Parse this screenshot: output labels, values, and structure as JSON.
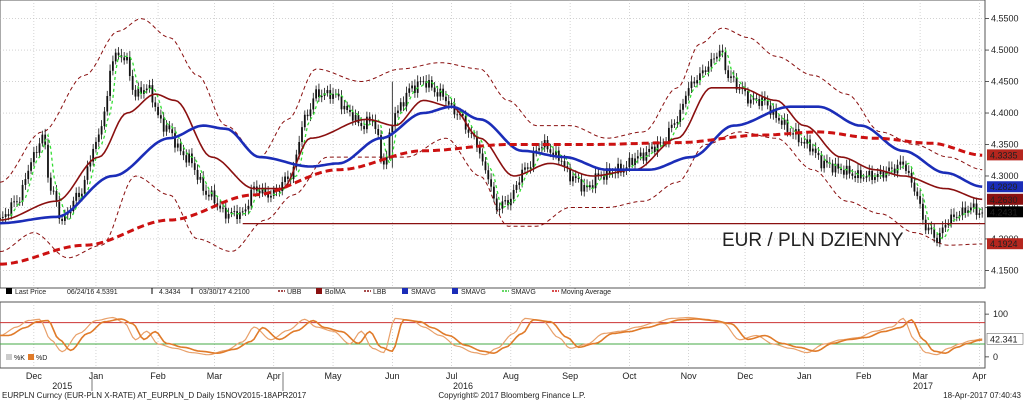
{
  "chart_data": {
    "type": "line",
    "title": "EUR / PLN DZIENNY",
    "ylim": [
      4.13,
      4.57
    ],
    "yticks": [
      "4.5500",
      "4.5000",
      "4.4500",
      "4.4000",
      "4.3500",
      "4.3000",
      "4.2500",
      "4.2000",
      "4.1500"
    ],
    "months": [
      {
        "label": "Dec",
        "i": 12
      },
      {
        "label": "Jan",
        "i": 34
      },
      {
        "label": "Feb",
        "i": 56
      },
      {
        "label": "Mar",
        "i": 76
      },
      {
        "label": "Apr",
        "i": 97
      },
      {
        "label": "May",
        "i": 118
      },
      {
        "label": "Jun",
        "i": 139
      },
      {
        "label": "Jul",
        "i": 160
      },
      {
        "label": "Aug",
        "i": 181
      },
      {
        "label": "Sep",
        "i": 202
      },
      {
        "label": "Oct",
        "i": 223
      },
      {
        "label": "Nov",
        "i": 244
      },
      {
        "label": "Dec",
        "i": 264
      },
      {
        "label": "Jan",
        "i": 285
      },
      {
        "label": "Feb",
        "i": 306
      },
      {
        "label": "Mar",
        "i": 326
      },
      {
        "label": "Apr",
        "i": 347
      }
    ],
    "years": [
      {
        "label": "2015",
        "i": 10
      },
      {
        "label": "2016",
        "i": 152
      },
      {
        "label": "2017",
        "i": 315
      }
    ],
    "price_anchors": [
      [
        0,
        4.23
      ],
      [
        6,
        4.26
      ],
      [
        12,
        4.33
      ],
      [
        15,
        4.365
      ],
      [
        18,
        4.28
      ],
      [
        22,
        4.23
      ],
      [
        28,
        4.27
      ],
      [
        34,
        4.35
      ],
      [
        37,
        4.4
      ],
      [
        40,
        4.49
      ],
      [
        44,
        4.49
      ],
      [
        48,
        4.43
      ],
      [
        52,
        4.44
      ],
      [
        58,
        4.38
      ],
      [
        66,
        4.33
      ],
      [
        74,
        4.27
      ],
      [
        80,
        4.24
      ],
      [
        86,
        4.24
      ],
      [
        90,
        4.28
      ],
      [
        96,
        4.27
      ],
      [
        103,
        4.3
      ],
      [
        108,
        4.39
      ],
      [
        112,
        4.43
      ],
      [
        118,
        4.43
      ],
      [
        124,
        4.4
      ],
      [
        128,
        4.38
      ],
      [
        132,
        4.39
      ],
      [
        136,
        4.32
      ],
      [
        140,
        4.4
      ],
      [
        146,
        4.44
      ],
      [
        150,
        4.45
      ],
      [
        156,
        4.43
      ],
      [
        162,
        4.4
      ],
      [
        168,
        4.36
      ],
      [
        172,
        4.31
      ],
      [
        176,
        4.25
      ],
      [
        180,
        4.26
      ],
      [
        186,
        4.31
      ],
      [
        192,
        4.35
      ],
      [
        198,
        4.33
      ],
      [
        202,
        4.3
      ],
      [
        208,
        4.28
      ],
      [
        212,
        4.3
      ],
      [
        220,
        4.31
      ],
      [
        226,
        4.33
      ],
      [
        234,
        4.35
      ],
      [
        240,
        4.39
      ],
      [
        244,
        4.44
      ],
      [
        248,
        4.46
      ],
      [
        252,
        4.48
      ],
      [
        255,
        4.5
      ],
      [
        258,
        4.46
      ],
      [
        262,
        4.44
      ],
      [
        266,
        4.42
      ],
      [
        270,
        4.42
      ],
      [
        276,
        4.39
      ],
      [
        280,
        4.37
      ],
      [
        286,
        4.35
      ],
      [
        292,
        4.32
      ],
      [
        298,
        4.31
      ],
      [
        304,
        4.3
      ],
      [
        310,
        4.3
      ],
      [
        316,
        4.31
      ],
      [
        320,
        4.32
      ],
      [
        324,
        4.28
      ],
      [
        328,
        4.22
      ],
      [
        332,
        4.2
      ],
      [
        336,
        4.23
      ],
      [
        340,
        4.24
      ],
      [
        344,
        4.25
      ],
      [
        348,
        4.24
      ]
    ],
    "moving_average_200": [
      [
        0,
        4.16
      ],
      [
        30,
        4.19
      ],
      [
        60,
        4.23
      ],
      [
        90,
        4.27
      ],
      [
        120,
        4.31
      ],
      [
        150,
        4.34
      ],
      [
        180,
        4.35
      ],
      [
        210,
        4.35
      ],
      [
        240,
        4.353
      ],
      [
        270,
        4.365
      ],
      [
        290,
        4.37
      ],
      [
        310,
        4.36
      ],
      [
        330,
        4.352
      ],
      [
        348,
        4.333
      ]
    ],
    "sma_blue": [
      [
        0,
        4.225
      ],
      [
        20,
        4.235
      ],
      [
        40,
        4.3
      ],
      [
        60,
        4.36
      ],
      [
        72,
        4.38
      ],
      [
        80,
        4.375
      ],
      [
        92,
        4.33
      ],
      [
        110,
        4.315
      ],
      [
        120,
        4.32
      ],
      [
        135,
        4.36
      ],
      [
        150,
        4.4
      ],
      [
        160,
        4.41
      ],
      [
        170,
        4.39
      ],
      [
        185,
        4.34
      ],
      [
        200,
        4.33
      ],
      [
        215,
        4.31
      ],
      [
        230,
        4.31
      ],
      [
        245,
        4.33
      ],
      [
        260,
        4.38
      ],
      [
        280,
        4.41
      ],
      [
        290,
        4.41
      ],
      [
        305,
        4.38
      ],
      [
        320,
        4.34
      ],
      [
        335,
        4.305
      ],
      [
        348,
        4.283
      ]
    ],
    "bollinger_mid": [
      [
        0,
        4.23
      ],
      [
        20,
        4.26
      ],
      [
        35,
        4.33
      ],
      [
        45,
        4.4
      ],
      [
        55,
        4.43
      ],
      [
        62,
        4.42
      ],
      [
        75,
        4.33
      ],
      [
        90,
        4.28
      ],
      [
        100,
        4.28
      ],
      [
        110,
        4.36
      ],
      [
        130,
        4.39
      ],
      [
        140,
        4.38
      ],
      [
        150,
        4.42
      ],
      [
        160,
        4.41
      ],
      [
        170,
        4.36
      ],
      [
        182,
        4.3
      ],
      [
        195,
        4.32
      ],
      [
        210,
        4.3
      ],
      [
        225,
        4.31
      ],
      [
        240,
        4.36
      ],
      [
        252,
        4.44
      ],
      [
        262,
        4.44
      ],
      [
        275,
        4.42
      ],
      [
        285,
        4.38
      ],
      [
        298,
        4.33
      ],
      [
        310,
        4.31
      ],
      [
        320,
        4.3
      ],
      [
        335,
        4.28
      ],
      [
        348,
        4.263
      ]
    ],
    "upper_band": [
      [
        0,
        4.29
      ],
      [
        15,
        4.37
      ],
      [
        30,
        4.46
      ],
      [
        42,
        4.53
      ],
      [
        50,
        4.55
      ],
      [
        60,
        4.52
      ],
      [
        70,
        4.46
      ],
      [
        80,
        4.38
      ],
      [
        92,
        4.33
      ],
      [
        102,
        4.39
      ],
      [
        112,
        4.47
      ],
      [
        128,
        4.45
      ],
      [
        142,
        4.47
      ],
      [
        156,
        4.48
      ],
      [
        170,
        4.47
      ],
      [
        180,
        4.42
      ],
      [
        190,
        4.38
      ],
      [
        202,
        4.38
      ],
      [
        215,
        4.36
      ],
      [
        228,
        4.37
      ],
      [
        240,
        4.44
      ],
      [
        248,
        4.51
      ],
      [
        256,
        4.535
      ],
      [
        265,
        4.52
      ],
      [
        275,
        4.49
      ],
      [
        288,
        4.46
      ],
      [
        300,
        4.43
      ],
      [
        312,
        4.37
      ],
      [
        324,
        4.35
      ],
      [
        336,
        4.33
      ],
      [
        348,
        4.31
      ]
    ],
    "lower_band": [
      [
        0,
        4.18
      ],
      [
        12,
        4.21
      ],
      [
        24,
        4.17
      ],
      [
        36,
        4.19
      ],
      [
        48,
        4.3
      ],
      [
        60,
        4.27
      ],
      [
        70,
        4.2
      ],
      [
        82,
        4.18
      ],
      [
        94,
        4.23
      ],
      [
        104,
        4.27
      ],
      [
        116,
        4.33
      ],
      [
        130,
        4.33
      ],
      [
        144,
        4.33
      ],
      [
        158,
        4.36
      ],
      [
        170,
        4.3
      ],
      [
        180,
        4.22
      ],
      [
        190,
        4.22
      ],
      [
        202,
        4.25
      ],
      [
        215,
        4.25
      ],
      [
        228,
        4.26
      ],
      [
        240,
        4.29
      ],
      [
        250,
        4.35
      ],
      [
        262,
        4.37
      ],
      [
        275,
        4.36
      ],
      [
        288,
        4.31
      ],
      [
        300,
        4.26
      ],
      [
        312,
        4.24
      ],
      [
        324,
        4.21
      ],
      [
        336,
        4.19
      ],
      [
        348,
        4.192
      ]
    ],
    "support_level": 4.2243,
    "price_boxes": [
      {
        "text": "4.3335",
        "value": 4.3335,
        "bg": "#b5261e",
        "fg": "#ffffff"
      },
      {
        "text": "4.2829",
        "value": 4.2829,
        "bg": "#1b2db8",
        "fg": "#ffffff"
      },
      {
        "text": "4.2630",
        "value": 4.263,
        "bg": "#8a1010",
        "fg": "#ffffff"
      },
      {
        "text": "4.2431",
        "value": 4.2431,
        "bg": "#000000",
        "fg": "#ffffff"
      },
      {
        "text": "4.1924",
        "value": 4.1924,
        "bg": "#b5261e",
        "fg": "#ffffff"
      }
    ],
    "legend": [
      {
        "text": "Last Price",
        "kind": "sq",
        "color": "#000000"
      },
      {
        "text": "06/24/16 4.5391",
        "kind": "none",
        "color": "#000000"
      },
      {
        "text": "4.3434",
        "kind": "tick",
        "color": "#000000"
      },
      {
        "text": "03/30/17 4.2100",
        "kind": "tick",
        "color": "#000000"
      },
      {
        "text": "UBB",
        "kind": "dash",
        "color": "#8a1010"
      },
      {
        "text": "BolMA",
        "kind": "sq",
        "color": "#8a1010"
      },
      {
        "text": "LBB",
        "kind": "dash",
        "color": "#8a1010"
      },
      {
        "text": "SMAVG",
        "kind": "sq",
        "color": "#1b2db8"
      },
      {
        "text": "SMAVG",
        "kind": "sq",
        "color": "#1b2db8"
      },
      {
        "text": "SMAVG",
        "kind": "dash",
        "color": "#33cc33"
      },
      {
        "text": "Moving Average",
        "kind": "dash",
        "color": "#cc1111"
      }
    ],
    "osc_ylim": [
      -12,
      112
    ],
    "osc_yticks": [
      "100",
      "0"
    ],
    "osc_levels": [
      80,
      30
    ],
    "osc_value": "42.341",
    "osc_series": [
      [
        0,
        50
      ],
      [
        6,
        70
      ],
      [
        10,
        85
      ],
      [
        14,
        88
      ],
      [
        18,
        40
      ],
      [
        22,
        12
      ],
      [
        28,
        55
      ],
      [
        34,
        85
      ],
      [
        40,
        92
      ],
      [
        44,
        80
      ],
      [
        48,
        40
      ],
      [
        52,
        60
      ],
      [
        56,
        30
      ],
      [
        62,
        20
      ],
      [
        68,
        10
      ],
      [
        74,
        5
      ],
      [
        80,
        15
      ],
      [
        86,
        35
      ],
      [
        90,
        70
      ],
      [
        96,
        40
      ],
      [
        102,
        62
      ],
      [
        108,
        88
      ],
      [
        112,
        70
      ],
      [
        118,
        60
      ],
      [
        124,
        30
      ],
      [
        128,
        60
      ],
      [
        132,
        20
      ],
      [
        136,
        10
      ],
      [
        140,
        90
      ],
      [
        146,
        85
      ],
      [
        150,
        70
      ],
      [
        156,
        50
      ],
      [
        162,
        25
      ],
      [
        168,
        10
      ],
      [
        172,
        5
      ],
      [
        176,
        20
      ],
      [
        182,
        55
      ],
      [
        186,
        90
      ],
      [
        192,
        85
      ],
      [
        198,
        45
      ],
      [
        202,
        20
      ],
      [
        208,
        30
      ],
      [
        214,
        55
      ],
      [
        220,
        60
      ],
      [
        226,
        70
      ],
      [
        232,
        80
      ],
      [
        238,
        90
      ],
      [
        244,
        92
      ],
      [
        250,
        88
      ],
      [
        256,
        80
      ],
      [
        262,
        40
      ],
      [
        268,
        50
      ],
      [
        274,
        30
      ],
      [
        280,
        20
      ],
      [
        286,
        10
      ],
      [
        292,
        30
      ],
      [
        298,
        40
      ],
      [
        304,
        45
      ],
      [
        310,
        60
      ],
      [
        316,
        70
      ],
      [
        320,
        90
      ],
      [
        324,
        40
      ],
      [
        328,
        10
      ],
      [
        332,
        5
      ],
      [
        336,
        20
      ],
      [
        340,
        30
      ],
      [
        344,
        38
      ],
      [
        348,
        42
      ]
    ],
    "osc_legend": [
      "%K",
      "%D"
    ],
    "footer": {
      "left": "EURPLN Curncy (EUR-PLN X-RATE) AT_EURPLN_D  Daily 15NOV2015-18APR2017",
      "center": "Copyright© 2017 Bloomberg Finance L.P.",
      "right": "18-Apr-2017 07:40:43"
    },
    "colors": {
      "candle": "#111111",
      "sma_blue": "#1b2db8",
      "sma_green": "#33dd33",
      "bol_mid": "#8a1010",
      "band": "#8a1010",
      "ma200": "#cc1111",
      "support": "#8a1010",
      "title": "#cc1111",
      "osc_k": "#e8a06a",
      "osc_d": "#e07b2a",
      "osc_level_hi": "#cc3333",
      "osc_level_lo": "#44aa44",
      "grid": "#b8b8b8"
    }
  }
}
